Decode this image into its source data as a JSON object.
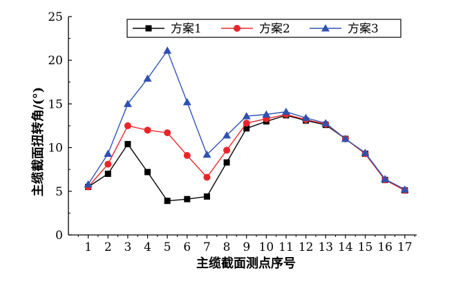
{
  "chart_data": {
    "type": "line",
    "xlabel": "主缆截面测点序号",
    "ylabel": "主缆截面扭转角/(°)",
    "x": [
      1,
      2,
      3,
      4,
      5,
      6,
      7,
      8,
      9,
      10,
      11,
      12,
      13,
      14,
      15,
      16,
      17
    ],
    "xlim": [
      0,
      17.6
    ],
    "ylim": [
      0,
      25
    ],
    "yticks": [
      0,
      5,
      10,
      15,
      20,
      25
    ],
    "xticks": [
      1,
      2,
      3,
      4,
      5,
      6,
      7,
      8,
      9,
      10,
      11,
      12,
      13,
      14,
      15,
      16,
      17
    ],
    "grid": false,
    "legend_position": "top-right",
    "series": [
      {
        "name": "方案1",
        "marker": "square",
        "color": "#000000",
        "values": [
          5.5,
          7.0,
          10.4,
          7.2,
          3.9,
          4.1,
          4.4,
          8.3,
          12.2,
          13.0,
          13.7,
          13.1,
          12.6,
          11.0,
          9.3,
          6.3,
          5.1
        ]
      },
      {
        "name": "方案2",
        "marker": "circle",
        "color": "#e8262a",
        "values": [
          5.5,
          8.1,
          12.5,
          12.0,
          11.7,
          9.1,
          6.6,
          9.7,
          12.8,
          13.3,
          13.8,
          13.2,
          12.7,
          11.0,
          9.3,
          6.3,
          5.1
        ]
      },
      {
        "name": "方案3",
        "marker": "triangle",
        "color": "#2f52b0",
        "values": [
          5.8,
          9.3,
          15.0,
          17.9,
          21.1,
          15.2,
          9.2,
          11.4,
          13.6,
          13.8,
          14.1,
          13.4,
          12.8,
          11.0,
          9.4,
          6.4,
          5.2
        ]
      }
    ]
  }
}
